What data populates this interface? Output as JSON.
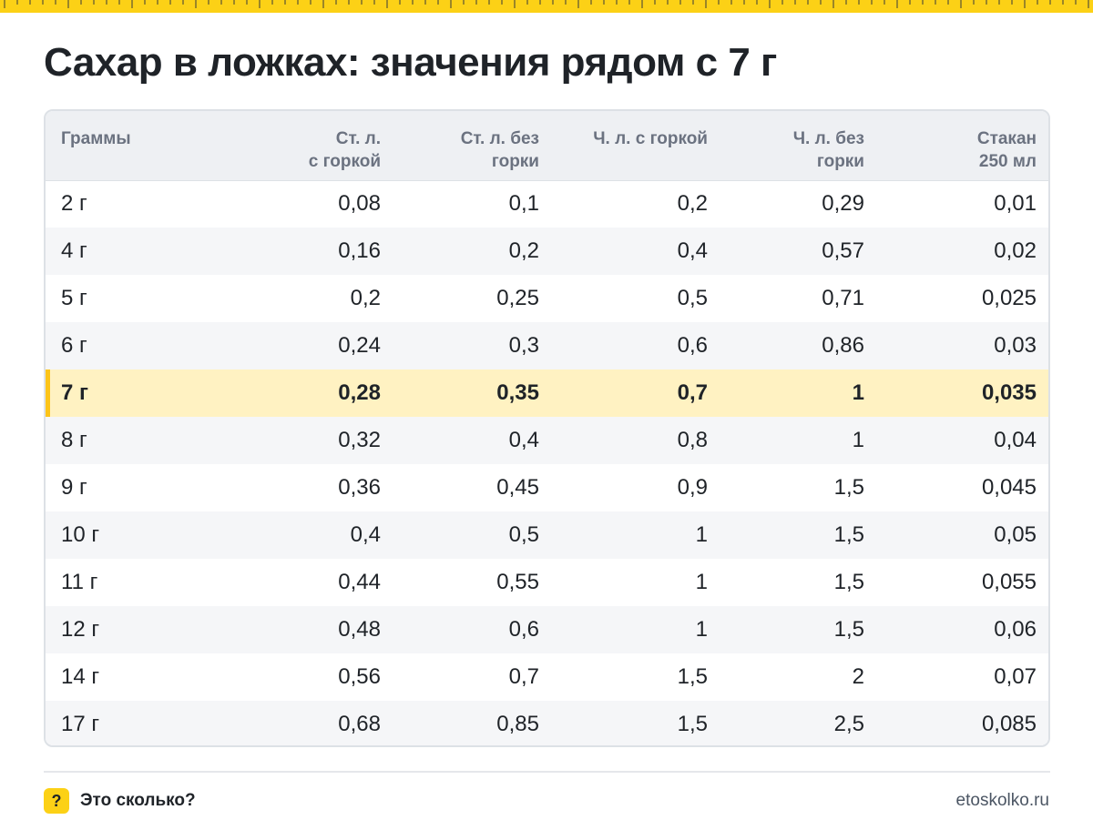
{
  "title": "Сахар в ложках: значения рядом с 7 г",
  "table": {
    "headers": [
      [
        "Граммы"
      ],
      [
        "Ст. л.",
        "с горкой"
      ],
      [
        "Ст. л. без",
        "горки"
      ],
      [
        "Ч. л. с горкой"
      ],
      [
        "Ч. л. без",
        "горки"
      ],
      [
        "Стакан",
        "250 мл"
      ]
    ],
    "highlight_row": 4,
    "rows": [
      [
        "2 г",
        "0,08",
        "0,1",
        "0,2",
        "0,29",
        "0,01"
      ],
      [
        "4 г",
        "0,16",
        "0,2",
        "0,4",
        "0,57",
        "0,02"
      ],
      [
        "5 г",
        "0,2",
        "0,25",
        "0,5",
        "0,71",
        "0,025"
      ],
      [
        "6 г",
        "0,24",
        "0,3",
        "0,6",
        "0,86",
        "0,03"
      ],
      [
        "7 г",
        "0,28",
        "0,35",
        "0,7",
        "1",
        "0,035"
      ],
      [
        "8 г",
        "0,32",
        "0,4",
        "0,8",
        "1",
        "0,04"
      ],
      [
        "9 г",
        "0,36",
        "0,45",
        "0,9",
        "1,5",
        "0,045"
      ],
      [
        "10 г",
        "0,4",
        "0,5",
        "1",
        "1,5",
        "0,05"
      ],
      [
        "11 г",
        "0,44",
        "0,55",
        "1",
        "1,5",
        "0,055"
      ],
      [
        "12 г",
        "0,48",
        "0,6",
        "1",
        "1,5",
        "0,06"
      ],
      [
        "14 г",
        "0,56",
        "0,7",
        "1,5",
        "2",
        "0,07"
      ],
      [
        "17 г",
        "0,68",
        "0,85",
        "1,5",
        "2,5",
        "0,085"
      ]
    ]
  },
  "footer": {
    "badge": "?",
    "brand": "Это сколько?",
    "site": "etoskolko.ru"
  },
  "colors": {
    "accent": "#fcd116",
    "highlight_row_bg": "#fff2c2",
    "highlight_marker": "#fcc419"
  },
  "icons": {
    "ruler": "ruler-strip",
    "badge": "question-mark-icon"
  }
}
